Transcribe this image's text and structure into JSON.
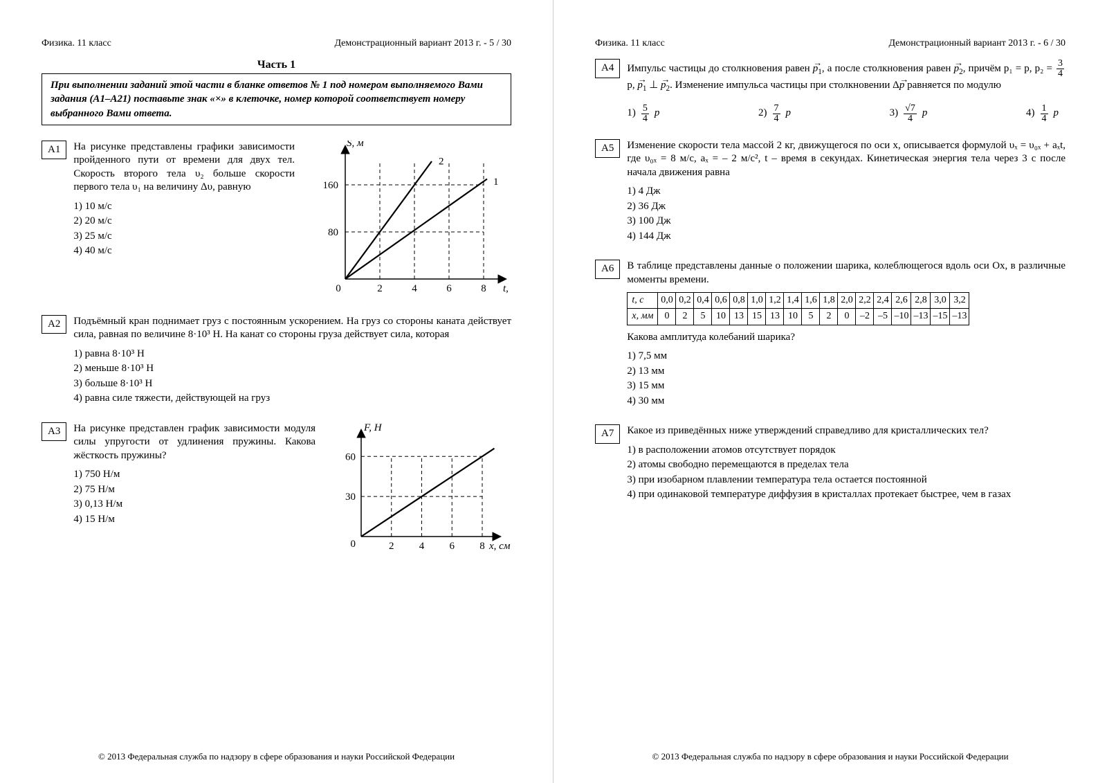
{
  "header": {
    "left": "Физика. 11 класс",
    "right_p5": "Демонстрационный вариант 2013 г. - 5 / 30",
    "right_p6": "Демонстрационный вариант 2013 г. - 6 / 30"
  },
  "section_title": "Часть 1",
  "instruction": "При выполнении заданий этой части в бланке ответов № 1 под номером выполняемого Вами задания (A1–A21) поставьте знак «×» в клеточке, номер которой соответствует номеру выбранного Вами ответа.",
  "footer": "© 2013 Федеральная служба по надзору в сфере образования и науки Российской Федерации",
  "A1": {
    "label": "A1",
    "text": "На рисунке представлены графики зависимости пройденного пути от времени для двух тел. Скорость второго тела υ₂ больше скорости первого тела υ₁ на величину Δυ, равную",
    "options": [
      "1)  10 м/с",
      "2)  20 м/с",
      "3)  25 м/с",
      "4)  40 м/с"
    ],
    "chart": {
      "xlabel": "t, с",
      "ylabel": "S, м",
      "xticks": [
        0,
        2,
        4,
        6,
        8
      ],
      "yticks": [
        0,
        80,
        160
      ],
      "line_labels": [
        "1",
        "2"
      ],
      "stroke": "#000000",
      "dash": "5,4",
      "line_width": 2.2,
      "axis_width": 1.5
    }
  },
  "A2": {
    "label": "A2",
    "text": "Подъёмный кран поднимает груз с постоянным ускорением. На груз со стороны каната действует сила, равная по величине 8·10³ Н. На канат со стороны груза действует сила, которая",
    "options": [
      "1)  равна 8·10³ Н",
      "2)  меньше 8·10³ Н",
      "3)  больше 8·10³ Н",
      "4)  равна силе тяжести, действующей на груз"
    ]
  },
  "A3": {
    "label": "A3",
    "text": "На рисунке представлен график зависимости модуля силы упругости от удлинения пружины. Какова жёсткость пружины?",
    "options": [
      "1)  750 Н/м",
      "2)  75 Н/м",
      "3)  0,13 Н/м",
      "4)  15 Н/м"
    ],
    "chart": {
      "xlabel": "x, см",
      "ylabel": "F, Н",
      "xticks": [
        0,
        2,
        4,
        6,
        8
      ],
      "yticks": [
        0,
        30,
        60
      ],
      "stroke": "#000000",
      "dash": "5,4",
      "line_width": 2.2,
      "axis_width": 1.5
    }
  },
  "A4": {
    "label": "A4",
    "text_parts": {
      "p1": "Импульс частицы до столкновения равен ",
      "p2": ", а после столкновения равен ",
      "p3": ", причём   p₁ = p,  p₂ = ",
      "p4": "p,  ",
      "p5": ".  Изменение импульса частицы при столкновении Δ",
      "p6": " равняется по модулю"
    },
    "options": [
      {
        "n": "1)",
        "num": "5",
        "den": "4",
        "suf": "p"
      },
      {
        "n": "2)",
        "num": "7",
        "den": "4",
        "suf": "p"
      },
      {
        "n": "3)",
        "num": "√7",
        "den": "4",
        "suf": "p"
      },
      {
        "n": "4)",
        "num": "1",
        "den": "4",
        "suf": "p"
      }
    ],
    "frac34": {
      "num": "3",
      "den": "4"
    }
  },
  "A5": {
    "label": "A5",
    "text": "Изменение скорости тела массой 2 кг, движущегося по оси x, описывается формулой υₓ = υ₀ₓ + aₓt, где υ₀ₓ = 8 м/с, aₓ = – 2 м/с², t – время в секундах. Кинетическая энергия тела через 3 с после начала движения равна",
    "options": [
      "1)  4 Дж",
      "2)  36 Дж",
      "3)  100 Дж",
      "4)  144 Дж"
    ]
  },
  "A6": {
    "label": "A6",
    "text": "В таблице представлены данные о положении шарика, колеблющегося вдоль оси Ox, в различные моменты времени.",
    "table": {
      "row1_label": "t, с",
      "row2_label": "x, мм",
      "t": [
        "0,0",
        "0,2",
        "0,4",
        "0,6",
        "0,8",
        "1,0",
        "1,2",
        "1,4",
        "1,6",
        "1,8",
        "2,0",
        "2,2",
        "2,4",
        "2,6",
        "2,8",
        "3,0",
        "3,2"
      ],
      "x": [
        "0",
        "2",
        "5",
        "10",
        "13",
        "15",
        "13",
        "10",
        "5",
        "2",
        "0",
        "–2",
        "–5",
        "–10",
        "–13",
        "–15",
        "–13"
      ]
    },
    "post": "Какова амплитуда колебаний шарика?",
    "options": [
      "1)  7,5 мм",
      "2)  13 мм",
      "3)  15 мм",
      "4)  30 мм"
    ]
  },
  "A7": {
    "label": "A7",
    "text": "Какое из приведённых ниже утверждений справедливо для кристаллических тел?",
    "options": [
      "1)  в расположении атомов отсутствует порядок",
      "2)  атомы свободно перемещаются в пределах тела",
      "3)  при изобарном плавлении температура тела остается постоянной",
      "4)  при одинаковой температуре диффузия в кристаллах протекает быстрее, чем в газах"
    ]
  }
}
